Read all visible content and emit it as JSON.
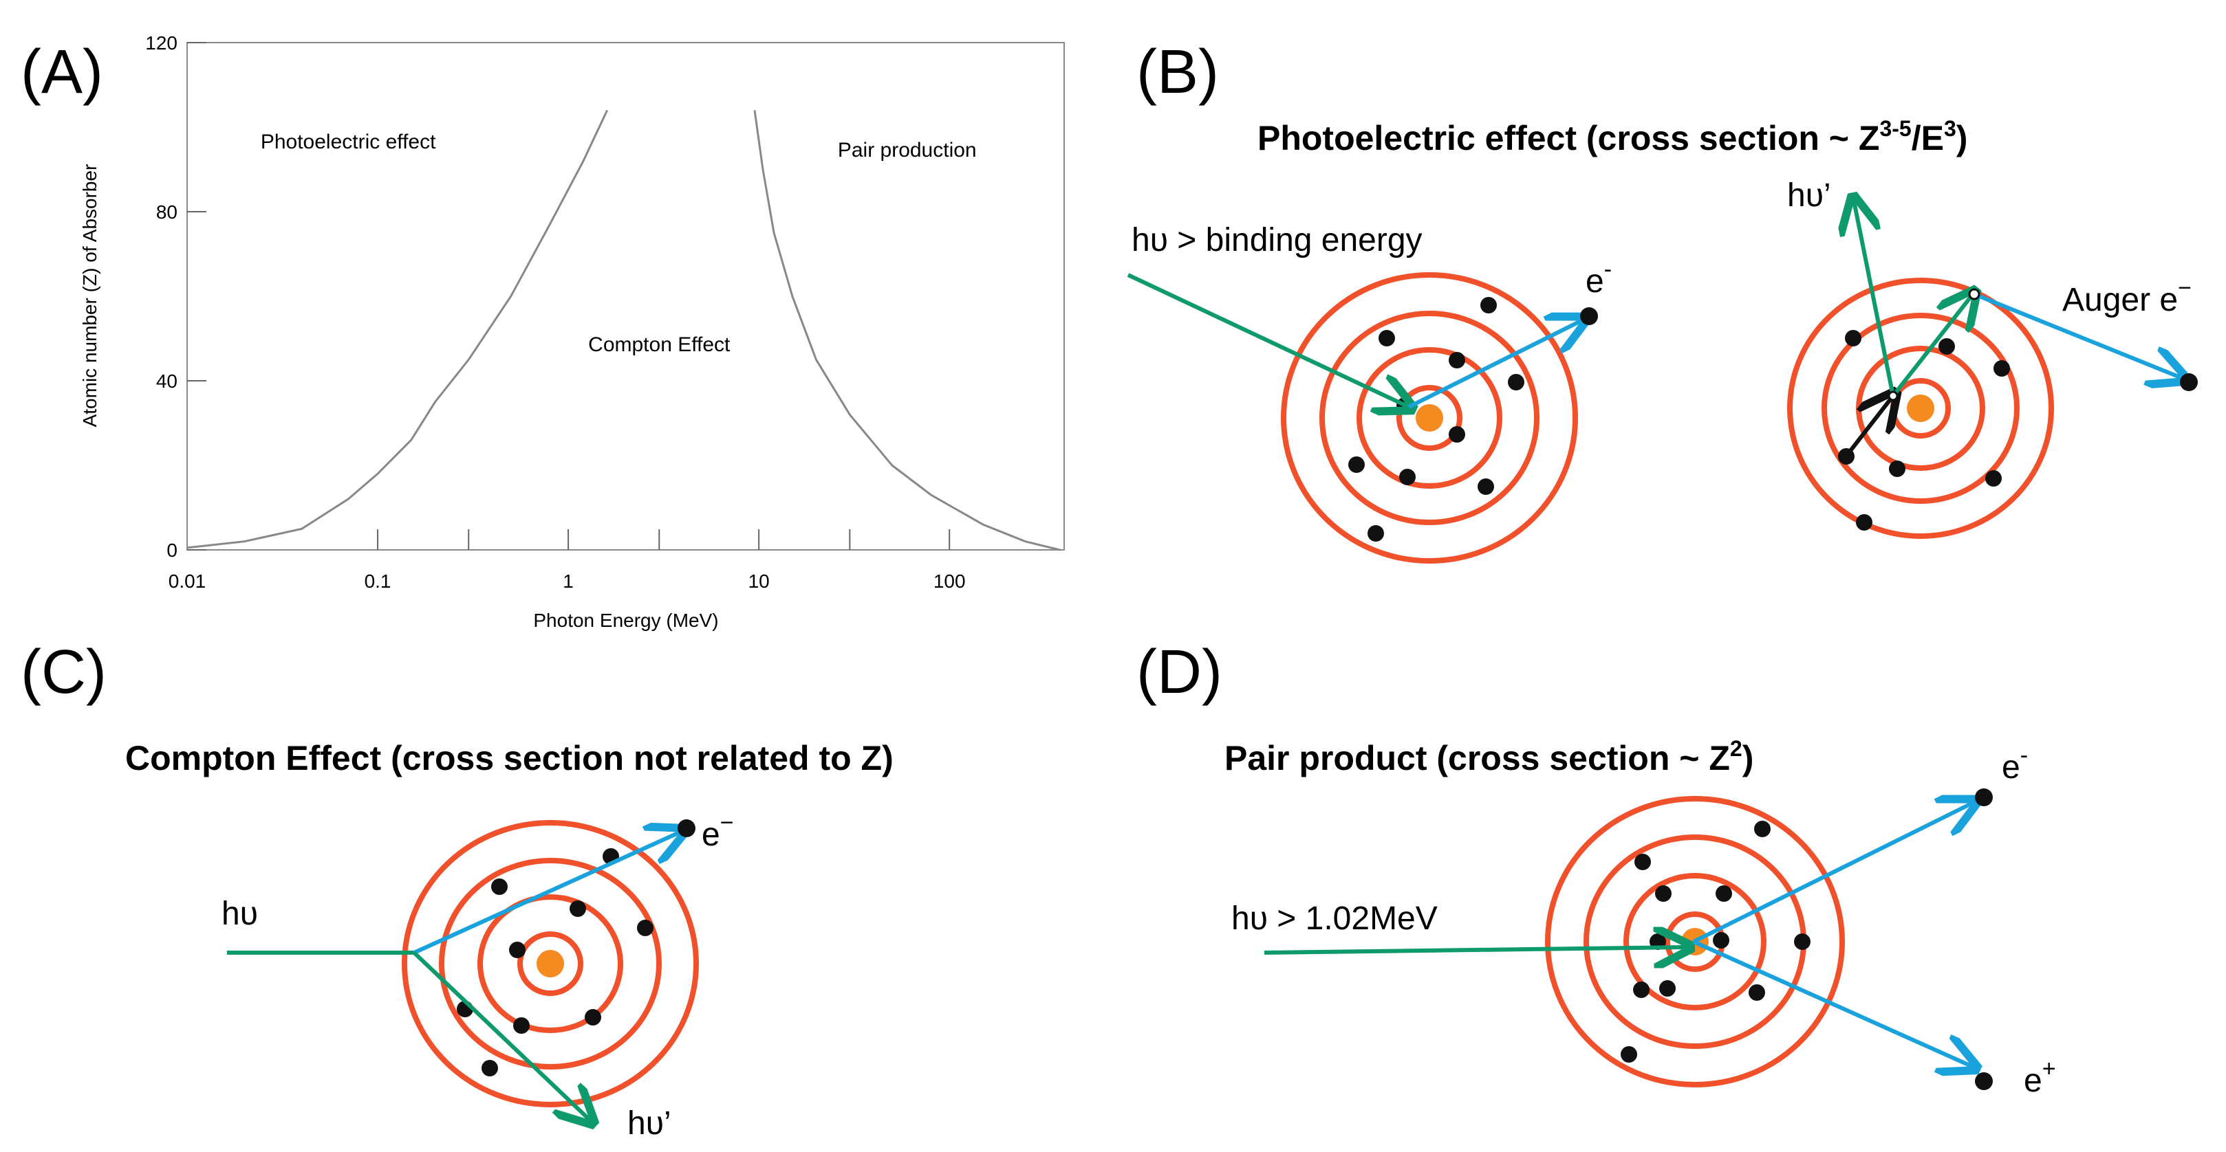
{
  "colors": {
    "shell": "#f0502a",
    "nucleus": "#f58a20",
    "electron": "#111111",
    "photon": "#0f9a6e",
    "electron_path": "#1aa2dc",
    "curve": "#888888"
  },
  "panels": {
    "a": {
      "letter": "(A)"
    },
    "b": {
      "letter": "(B)",
      "title_main": "Photoelectric  effect (cross section ~ Z",
      "title_sup1": "3-5",
      "title_mid": "/E",
      "title_sup2": "3",
      "title_end": ")",
      "incoming_label": "hυ > binding energy",
      "electron_label": "e",
      "electron_sup": "-",
      "fluor_label": "hυ’",
      "auger_label": "Auger e",
      "auger_sup": "−"
    },
    "c": {
      "letter": "(C)",
      "title": "Compton  Effect  (cross  section  not  related  to  Z)",
      "incoming_label": "hυ",
      "electron_label": "e",
      "electron_sup": "−",
      "scattered_label": "hυ’"
    },
    "d": {
      "letter": "(D)",
      "title_main": "Pair  product  (cross  section  ~ Z",
      "title_sup": "2",
      "title_end": ")",
      "incoming_label": "hυ > 1.02MeV",
      "electron_label": "e",
      "electron_sup": "-",
      "positron_label": "e",
      "positron_sup": "+"
    }
  },
  "chart_data": {
    "type": "line",
    "title": "",
    "xlabel": "Photon Energy (MeV)",
    "ylabel": "Atomic number (Z) of Absorber",
    "xscale": "log",
    "xlim": [
      0.01,
      400
    ],
    "ylim": [
      0,
      120
    ],
    "x_tick_labels": [
      "0.01",
      "0.1",
      "1",
      "10",
      "100"
    ],
    "y_tick_labels": [
      "0",
      "40",
      "80",
      "120"
    ],
    "regions": [
      {
        "name": "Photoelectric effect",
        "x": 0.07,
        "z": 95
      },
      {
        "name": "Compton Effect",
        "x": 3.0,
        "z": 47
      },
      {
        "name": "Pair production",
        "x": 60,
        "z": 93
      }
    ],
    "series": [
      {
        "name": "Photoelectric / Compton boundary",
        "points": [
          [
            0.01,
            0.5
          ],
          [
            0.02,
            2
          ],
          [
            0.04,
            5
          ],
          [
            0.07,
            12
          ],
          [
            0.1,
            18
          ],
          [
            0.15,
            26
          ],
          [
            0.2,
            35
          ],
          [
            0.3,
            45
          ],
          [
            0.5,
            60
          ],
          [
            0.8,
            77
          ],
          [
            1.2,
            92
          ],
          [
            1.6,
            104
          ]
        ]
      },
      {
        "name": "Compton / Pair production boundary",
        "points": [
          [
            9.5,
            104
          ],
          [
            10.5,
            90
          ],
          [
            12,
            75
          ],
          [
            15,
            60
          ],
          [
            20,
            45
          ],
          [
            30,
            32
          ],
          [
            50,
            20
          ],
          [
            80,
            13
          ],
          [
            150,
            6
          ],
          [
            250,
            2
          ],
          [
            380,
            0
          ]
        ]
      }
    ]
  }
}
